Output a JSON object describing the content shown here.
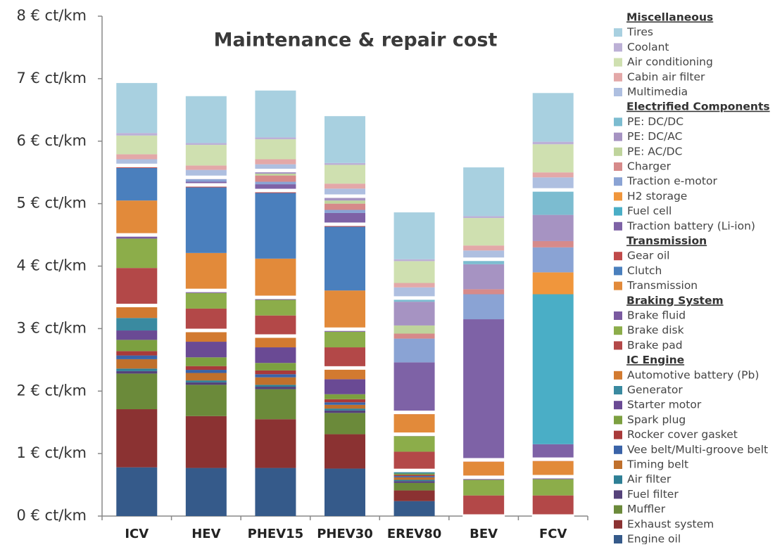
{
  "chart_data": {
    "type": "stacked_bar",
    "title": "Maintenance & repair cost",
    "categories": [
      "ICV",
      "HEV",
      "PHEV15",
      "PHEV30",
      "EREV80",
      "BEV",
      "FCV"
    ],
    "ylim": [
      0,
      8
    ],
    "yticks": [
      {
        "value": 0,
        "label": "0 € ct/km"
      },
      {
        "value": 1,
        "label": "1 € ct/km"
      },
      {
        "value": 2,
        "label": "2 € ct/km"
      },
      {
        "value": 3,
        "label": "3 € ct/km"
      },
      {
        "value": 4,
        "label": "4 € ct/km"
      },
      {
        "value": 5,
        "label": "5 € ct/km"
      },
      {
        "value": 6,
        "label": "6 € ct/km"
      },
      {
        "value": 7,
        "label": "7 € ct/km"
      },
      {
        "value": 8,
        "label": "8 € ct/km"
      }
    ],
    "groups": [
      {
        "title": "IC Engine",
        "series": [
          {
            "name": "Engine oil",
            "color": "#355a8a",
            "values": [
              0.78,
              0.77,
              0.77,
              0.76,
              0.24,
              0,
              0
            ]
          },
          {
            "name": "Exhaust system",
            "color": "#8b3232",
            "values": [
              0.93,
              0.83,
              0.78,
              0.55,
              0.17,
              0,
              0
            ]
          },
          {
            "name": "Muffler",
            "color": "#6b8a3a",
            "values": [
              0.57,
              0.5,
              0.48,
              0.34,
              0.12,
              0,
              0
            ]
          },
          {
            "name": "Fuel filter",
            "color": "#55427a",
            "values": [
              0.04,
              0.04,
              0.04,
              0.04,
              0.03,
              0,
              0
            ]
          },
          {
            "name": "Air filter",
            "color": "#2e7f95",
            "values": [
              0.04,
              0.03,
              0.03,
              0.03,
              0.02,
              0,
              0
            ]
          },
          {
            "name": "Timing belt",
            "color": "#c0702c",
            "values": [
              0.15,
              0.12,
              0.12,
              0.06,
              0.04,
              0,
              0
            ]
          },
          {
            "name": "Vee belt/Multi-groove belt",
            "color": "#3a63a8",
            "values": [
              0.06,
              0.05,
              0.05,
              0.04,
              0.02,
              0,
              0
            ]
          },
          {
            "name": "Rocker cover gasket",
            "color": "#a83a3a",
            "values": [
              0.07,
              0.06,
              0.06,
              0.05,
              0.02,
              0,
              0
            ]
          },
          {
            "name": "Spark plug",
            "color": "#7ca040",
            "values": [
              0.18,
              0.14,
              0.12,
              0.08,
              0.02,
              0,
              0
            ]
          },
          {
            "name": "Starter motor",
            "color": "#6a4a94",
            "values": [
              0.15,
              0.25,
              0.25,
              0.24,
              0,
              0,
              0
            ]
          },
          {
            "name": "Generator",
            "color": "#3a8aa0",
            "values": [
              0.2,
              0,
              0,
              0,
              0.05,
              0,
              0
            ]
          },
          {
            "name": "Automotive battery (Pb)",
            "color": "#d27a30",
            "values": [
              0.2,
              0.18,
              0.18,
              0.18,
              0,
              0,
              0
            ]
          }
        ]
      },
      {
        "title": "Braking System",
        "series": [
          {
            "name": "Brake pad",
            "color": "#b34848",
            "values": [
              0.6,
              0.35,
              0.33,
              0.33,
              0.3,
              0.33,
              0.33
            ]
          },
          {
            "name": "Brake disk",
            "color": "#8cad4a",
            "values": [
              0.47,
              0.25,
              0.25,
              0.25,
              0.25,
              0.25,
              0.26
            ]
          },
          {
            "name": "Brake fluid",
            "color": "#7a5aa0",
            "values": [
              0.06,
              0.04,
              0.04,
              0.04,
              0.03,
              0.04,
              0.04
            ]
          }
        ]
      },
      {
        "title": "Transmission",
        "series": [
          {
            "name": "Transmission",
            "color": "#e28a3a",
            "values": [
              0.55,
              0.6,
              0.62,
              0.62,
              0.32,
              0.25,
              0.25
            ]
          },
          {
            "name": "Clutch",
            "color": "#4a7fbd",
            "values": [
              0.52,
              1.05,
              1.05,
              1.02,
              0,
              0,
              0
            ]
          },
          {
            "name": "Gear oil",
            "color": "#c04a4a",
            "values": [
              0.04,
              0.04,
              0.04,
              0.04,
              0.03,
              0.03,
              0.03
            ]
          }
        ]
      },
      {
        "title": "Electrified Components",
        "series": [
          {
            "name": "Traction battery (Li-ion)",
            "color": "#7e62a6",
            "values": [
              0,
              0.05,
              0.1,
              0.18,
              0.8,
              2.25,
              0.24
            ]
          },
          {
            "name": "Fuel cell",
            "color": "#4aaec6",
            "values": [
              0,
              0,
              0,
              0,
              0,
              0,
              2.4
            ]
          },
          {
            "name": "H2 storage",
            "color": "#f0963c",
            "values": [
              0,
              0,
              0,
              0,
              0,
              0,
              0.35
            ]
          },
          {
            "name": "Traction e-motor",
            "color": "#8aa3d4",
            "values": [
              0,
              0.04,
              0.04,
              0.05,
              0.38,
              0.4,
              0.4
            ]
          },
          {
            "name": "Charger",
            "color": "#d68a8a",
            "values": [
              0,
              0,
              0.1,
              0.1,
              0.08,
              0.08,
              0.1
            ]
          },
          {
            "name": "PE: AC/DC",
            "color": "#bfd49c",
            "values": [
              0,
              0,
              0.03,
              0.05,
              0.13,
              0,
              0
            ]
          },
          {
            "name": "PE: DC/AC",
            "color": "#a693c2",
            "values": [
              0,
              0.03,
              0.03,
              0.07,
              0.38,
              0.4,
              0.42
            ]
          },
          {
            "name": "PE: DC/DC",
            "color": "#7cbcd0",
            "values": [
              0,
              0,
              0.02,
              0,
              0.06,
              0.08,
              0.4
            ]
          }
        ]
      },
      {
        "title": "Miscellaneous",
        "series": [
          {
            "name": "Multimedia",
            "color": "#aebfe0",
            "values": [
              0.1,
              0.12,
              0.1,
              0.12,
              0.17,
              0.14,
              0.2
            ]
          },
          {
            "name": "Cabin air filter",
            "color": "#e3a8a8",
            "values": [
              0.08,
              0.07,
              0.08,
              0.08,
              0.07,
              0.08,
              0.08
            ]
          },
          {
            "name": "Air conditioning",
            "color": "#cfe0b0",
            "values": [
              0.3,
              0.33,
              0.32,
              0.3,
              0.35,
              0.44,
              0.45
            ]
          },
          {
            "name": "Coolant",
            "color": "#bcb0d6",
            "values": [
              0.04,
              0.03,
              0.03,
              0.03,
              0.03,
              0.03,
              0.04
            ]
          },
          {
            "name": "Tires",
            "color": "#a8d0e0",
            "values": [
              0.8,
              0.75,
              0.75,
              0.75,
              0.75,
              0.78,
              0.78
            ]
          }
        ]
      }
    ]
  }
}
